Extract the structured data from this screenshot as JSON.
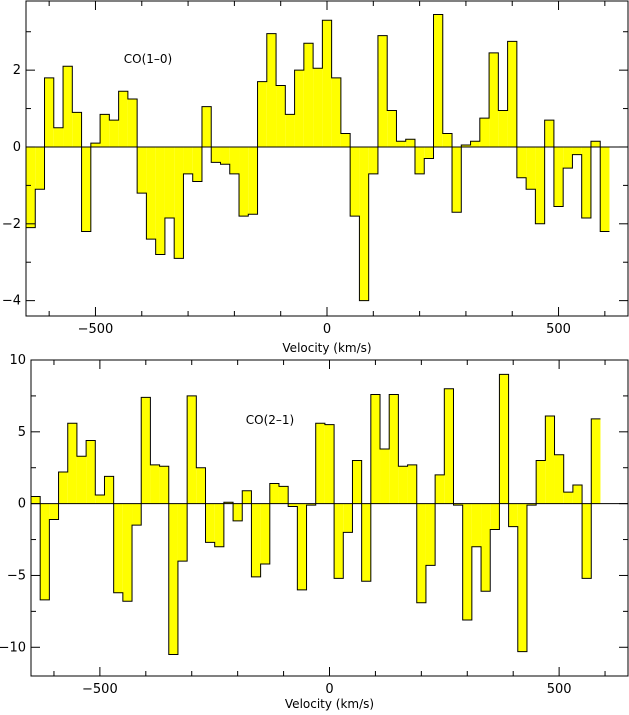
{
  "chart_data": [
    {
      "type": "bar",
      "style": "step-histogram",
      "title": "",
      "annotation": "CO(1–0)",
      "xlabel": "Velocity (km/s)",
      "ylabel": "",
      "xlim": [
        -650,
        650
      ],
      "ylim": [
        -4.4,
        3.8
      ],
      "xticks": [
        -500,
        0,
        500
      ],
      "xtick_labels": [
        "−500",
        "0",
        "500"
      ],
      "yticks": [
        -4,
        -2,
        0,
        2
      ],
      "ytick_labels": [
        "−4",
        "−2",
        "0",
        "2"
      ],
      "bin_width": 20,
      "x_start": -650,
      "fill_color": "#ffff00",
      "grid": false,
      "values": [
        -2.1,
        -1.1,
        1.8,
        0.5,
        2.1,
        0.9,
        -2.2,
        0.1,
        0.85,
        0.7,
        1.45,
        1.25,
        -1.2,
        -2.4,
        -2.8,
        -1.85,
        -2.9,
        -0.7,
        -0.9,
        1.05,
        -0.4,
        -0.45,
        -0.7,
        -1.8,
        -1.75,
        1.7,
        2.95,
        1.6,
        0.85,
        2.0,
        2.7,
        2.05,
        3.3,
        1.8,
        0.35,
        -1.8,
        -4.0,
        -0.7,
        2.9,
        0.95,
        0.15,
        0.2,
        -0.7,
        -0.3,
        3.45,
        0.35,
        -1.7,
        0.05,
        0.15,
        0.75,
        2.45,
        0.95,
        2.75,
        -0.8,
        -1.1,
        -2.0,
        0.7,
        -1.55,
        -0.55,
        -0.2,
        -1.85,
        0.15,
        -2.2
      ]
    },
    {
      "type": "bar",
      "style": "step-histogram",
      "title": "",
      "annotation": "CO(2–1)",
      "xlabel": "Velocity (km/s)",
      "ylabel": "",
      "xlim": [
        -650,
        650
      ],
      "ylim": [
        -12,
        10
      ],
      "xticks": [
        -500,
        0,
        500
      ],
      "xtick_labels": [
        "−500",
        "0",
        "500"
      ],
      "yticks": [
        -10,
        -5,
        0,
        5,
        10
      ],
      "ytick_labels": [
        "−10",
        "−5",
        "0",
        "5",
        "10"
      ],
      "bin_width": 20,
      "x_start": -650,
      "fill_color": "#ffff00",
      "grid": false,
      "values": [
        0.5,
        -6.7,
        -1.1,
        2.2,
        5.6,
        3.3,
        4.4,
        0.6,
        1.9,
        -6.2,
        -6.8,
        -1.5,
        7.4,
        2.7,
        2.6,
        -10.5,
        -4.0,
        7.5,
        2.5,
        -2.7,
        -3.0,
        0.1,
        -1.2,
        0.9,
        -5.1,
        -4.2,
        1.4,
        1.2,
        -0.2,
        -6.0,
        -0.1,
        5.6,
        5.5,
        -5.2,
        -2.0,
        3.0,
        -5.4,
        7.6,
        3.8,
        7.6,
        2.6,
        2.7,
        -6.9,
        -4.3,
        2.0,
        8.0,
        -0.1,
        -8.1,
        -3.0,
        -6.1,
        -1.8,
        9.0,
        -1.6,
        -10.3,
        -0.1,
        3.0,
        6.1,
        3.4,
        0.8,
        1.3,
        -5.2,
        5.9
      ]
    }
  ]
}
